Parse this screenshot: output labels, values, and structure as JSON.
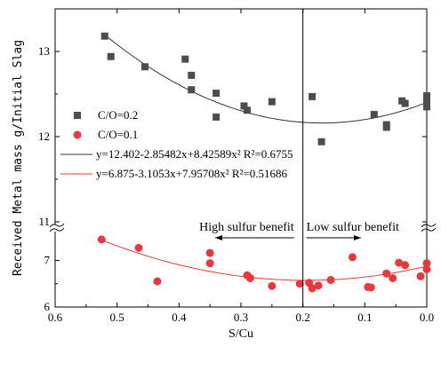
{
  "chart_data": {
    "type": "scatter",
    "xlabel": "S/Cu",
    "ylabel": "Received Metal mass g/Initial Slag",
    "xlim": [
      0.6,
      0.0
    ],
    "x_reversed": true,
    "x_ticks": [
      "0.6",
      "0.5",
      "0.4",
      "0.3",
      "0.2",
      "0.1",
      "0.0"
    ],
    "upper_panel": {
      "ylim": [
        11,
        13.5
      ],
      "y_ticks": [
        "11",
        "12",
        "13"
      ]
    },
    "lower_panel": {
      "ylim": [
        6,
        7.6
      ],
      "y_ticks": [
        "6",
        "7"
      ]
    },
    "axis_break": true,
    "divider_x": 0.2,
    "annotations": [
      {
        "text": "High sulfur benefit",
        "arrow": "left"
      },
      {
        "text": "Low sulfur benefit",
        "arrow": "right"
      }
    ],
    "colors": {
      "co02": "#4d4d4d",
      "co01": "#e8383d",
      "fit02": "#333333",
      "fit01": "#e8383d",
      "divider": "#000000"
    },
    "legend_position": "center-left",
    "series": [
      {
        "name": "C/O=0.2",
        "marker": "square",
        "panel": "upper",
        "points": [
          [
            0.52,
            13.18
          ],
          [
            0.51,
            12.94
          ],
          [
            0.455,
            12.82
          ],
          [
            0.39,
            12.91
          ],
          [
            0.38,
            12.72
          ],
          [
            0.38,
            12.55
          ],
          [
            0.34,
            12.51
          ],
          [
            0.34,
            12.23
          ],
          [
            0.295,
            12.36
          ],
          [
            0.29,
            12.31
          ],
          [
            0.25,
            12.41
          ],
          [
            0.185,
            12.47
          ],
          [
            0.17,
            11.94
          ],
          [
            0.085,
            12.26
          ],
          [
            0.065,
            12.14
          ],
          [
            0.065,
            12.11
          ],
          [
            0.04,
            12.42
          ],
          [
            0.035,
            12.39
          ],
          [
            0.0,
            12.48
          ],
          [
            0.0,
            12.43
          ],
          [
            0.0,
            12.35
          ]
        ]
      },
      {
        "name": "C/O=0.1",
        "marker": "circle",
        "panel": "lower",
        "points": [
          [
            0.525,
            7.45
          ],
          [
            0.465,
            7.27
          ],
          [
            0.435,
            6.55
          ],
          [
            0.35,
            7.16
          ],
          [
            0.35,
            6.94
          ],
          [
            0.29,
            6.68
          ],
          [
            0.285,
            6.62
          ],
          [
            0.25,
            6.45
          ],
          [
            0.205,
            6.5
          ],
          [
            0.19,
            6.52
          ],
          [
            0.185,
            6.4
          ],
          [
            0.175,
            6.46
          ],
          [
            0.155,
            6.58
          ],
          [
            0.12,
            7.07
          ],
          [
            0.095,
            6.43
          ],
          [
            0.09,
            6.42
          ],
          [
            0.065,
            6.72
          ],
          [
            0.055,
            6.62
          ],
          [
            0.045,
            6.95
          ],
          [
            0.035,
            6.9
          ],
          [
            0.01,
            6.66
          ],
          [
            0.0,
            6.94
          ],
          [
            0.0,
            6.81
          ]
        ]
      }
    ],
    "fits": [
      {
        "name": "y=12.402-2.85482x+8.42589x² R²=0.6755",
        "series": "C/O=0.2",
        "coef": [
          12.402,
          -2.85482,
          8.42589
        ],
        "x_range": [
          0.0,
          0.52
        ]
      },
      {
        "name": "y=6.875-3.1053x+7.95708x² R²=0.51686",
        "series": "C/O=0.1",
        "coef": [
          6.875,
          -3.1053,
          7.95708
        ],
        "x_range": [
          0.0,
          0.525
        ]
      }
    ]
  }
}
